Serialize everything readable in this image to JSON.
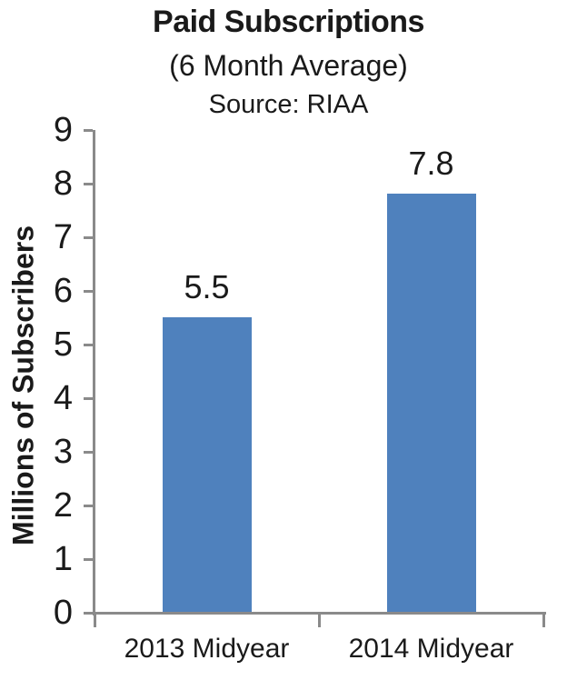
{
  "chart_data": {
    "type": "bar",
    "title": "Paid Subscriptions",
    "subtitle": "(6 Month Average)",
    "source": "Source: RIAA",
    "ylabel": "Millions of Subscribers",
    "categories": [
      "2013 Midyear",
      "2014 Midyear"
    ],
    "values": [
      5.5,
      7.8
    ],
    "data_labels": [
      "5.5",
      "7.8"
    ],
    "ylim": [
      0,
      9
    ],
    "yticks": [
      0,
      1,
      2,
      3,
      4,
      5,
      6,
      7,
      8,
      9
    ],
    "grid": false,
    "legend_position": "none",
    "colors": {
      "bar": "#4F81BD",
      "axis": "#8A8A8A",
      "text": "#1A1A1A"
    }
  }
}
